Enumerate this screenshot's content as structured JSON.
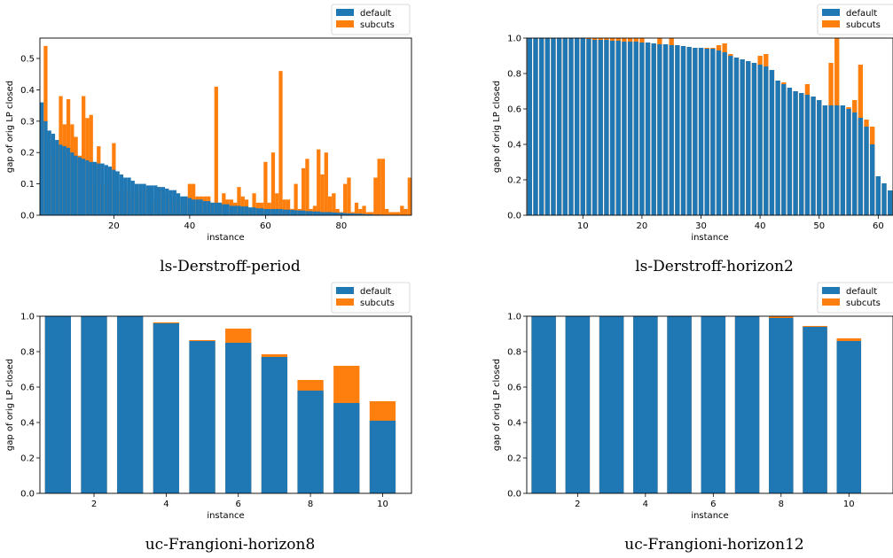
{
  "colors": {
    "default": "#1f77b4",
    "subcuts": "#ff7f0e"
  },
  "chart_data": [
    {
      "type": "bar",
      "caption": "ls-Derstroff-period",
      "xlabel": "instance",
      "ylabel": "gap of orig LP closed",
      "xlim": [
        0.5,
        98.5
      ],
      "ylim": [
        0,
        0.565
      ],
      "xticks": [
        20,
        40,
        60,
        80
      ],
      "yticks": [
        0.0,
        0.1,
        0.2,
        0.3,
        0.4,
        0.5
      ],
      "ytick_decimals": 1,
      "bar_width": 1.0,
      "legend": "top-right",
      "x": [
        1,
        2,
        3,
        4,
        5,
        6,
        7,
        8,
        9,
        10,
        11,
        12,
        13,
        14,
        15,
        16,
        17,
        18,
        19,
        20,
        21,
        22,
        23,
        24,
        25,
        26,
        27,
        28,
        29,
        30,
        31,
        32,
        33,
        34,
        35,
        36,
        37,
        38,
        39,
        40,
        41,
        42,
        43,
        44,
        45,
        46,
        47,
        48,
        49,
        50,
        51,
        52,
        53,
        54,
        55,
        56,
        57,
        58,
        59,
        60,
        61,
        62,
        63,
        64,
        65,
        66,
        67,
        68,
        69,
        70,
        71,
        72,
        73,
        74,
        75,
        76,
        77,
        78,
        79,
        80,
        81,
        82,
        83,
        84,
        85,
        86,
        87,
        88,
        89,
        90,
        91,
        92,
        93,
        94,
        95,
        96,
        97,
        98
      ],
      "series": [
        {
          "name": "default",
          "values": [
            0.36,
            0.3,
            0.27,
            0.26,
            0.24,
            0.225,
            0.22,
            0.215,
            0.2,
            0.19,
            0.185,
            0.18,
            0.175,
            0.17,
            0.17,
            0.165,
            0.165,
            0.16,
            0.155,
            0.145,
            0.14,
            0.13,
            0.12,
            0.12,
            0.11,
            0.1,
            0.1,
            0.1,
            0.095,
            0.095,
            0.095,
            0.09,
            0.09,
            0.085,
            0.08,
            0.08,
            0.07,
            0.06,
            0.06,
            0.055,
            0.05,
            0.05,
            0.05,
            0.045,
            0.045,
            0.04,
            0.04,
            0.04,
            0.035,
            0.035,
            0.03,
            0.03,
            0.03,
            0.028,
            0.028,
            0.025,
            0.025,
            0.022,
            0.022,
            0.02,
            0.02,
            0.02,
            0.02,
            0.02,
            0.018,
            0.018,
            0.017,
            0.016,
            0.015,
            0.015,
            0.013,
            0.013,
            0.012,
            0.012,
            0.01,
            0.01,
            0.01,
            0.009,
            0.008,
            0.008,
            0.007,
            0.006,
            0.006,
            0.005,
            0.005,
            0.004,
            0.003,
            0.003,
            0.002,
            0.002,
            0.001,
            0.001,
            0.001,
            0.0,
            0.0,
            0.0,
            0.0,
            0.0
          ]
        },
        {
          "name": "subcuts",
          "values": [
            0.3,
            0.54,
            0.24,
            0.19,
            0.23,
            0.38,
            0.29,
            0.37,
            0.29,
            0.25,
            0.19,
            0.38,
            0.31,
            0.32,
            0.1,
            0.22,
            0.1,
            0.1,
            0.1,
            0.23,
            0.08,
            0.08,
            0.08,
            0.08,
            0.08,
            0.06,
            0.08,
            0.08,
            0.08,
            0.05,
            0.04,
            0.09,
            0.07,
            0.07,
            0.05,
            0.05,
            0.05,
            0.04,
            0.04,
            0.1,
            0.1,
            0.06,
            0.06,
            0.06,
            0.06,
            0.04,
            0.41,
            0.04,
            0.07,
            0.05,
            0.05,
            0.04,
            0.09,
            0.06,
            0.05,
            0.02,
            0.07,
            0.04,
            0.04,
            0.17,
            0.04,
            0.2,
            0.07,
            0.46,
            0.05,
            0.05,
            0.02,
            0.1,
            0.02,
            0.15,
            0.18,
            0.02,
            0.03,
            0.21,
            0.13,
            0.2,
            0.06,
            0.07,
            0.02,
            0.01,
            0.1,
            0.12,
            0.01,
            0.04,
            0.02,
            0.03,
            0.01,
            0.01,
            0.12,
            0.18,
            0.18,
            0.02,
            0.01,
            0.01,
            0.01,
            0.03,
            0.02,
            0.12
          ]
        }
      ]
    },
    {
      "type": "bar",
      "caption": "ls-Derstroff-horizon2",
      "xlabel": "instance",
      "ylabel": "gap of orig LP closed",
      "xlim": [
        0.5,
        62.5
      ],
      "ylim": [
        0,
        1.0
      ],
      "xticks": [
        10,
        20,
        30,
        40,
        50,
        60
      ],
      "yticks": [
        0.0,
        0.2,
        0.4,
        0.6,
        0.8,
        1.0
      ],
      "ytick_decimals": 1,
      "bar_width": 0.8,
      "legend": "top-right",
      "x": [
        1,
        2,
        3,
        4,
        5,
        6,
        7,
        8,
        9,
        10,
        11,
        12,
        13,
        14,
        15,
        16,
        17,
        18,
        19,
        20,
        21,
        22,
        23,
        24,
        25,
        26,
        27,
        28,
        29,
        30,
        31,
        32,
        33,
        34,
        35,
        36,
        37,
        38,
        39,
        40,
        41,
        42,
        43,
        44,
        45,
        46,
        47,
        48,
        49,
        50,
        51,
        52,
        53,
        54,
        55,
        56,
        57,
        58,
        59,
        60,
        61,
        62
      ],
      "series": [
        {
          "name": "default",
          "values": [
            1.0,
            1.0,
            1.0,
            1.0,
            1.0,
            1.0,
            1.0,
            1.0,
            1.0,
            1.0,
            0.995,
            0.99,
            0.99,
            0.99,
            0.985,
            0.985,
            0.98,
            0.98,
            0.98,
            0.975,
            0.975,
            0.97,
            0.965,
            0.965,
            0.96,
            0.96,
            0.955,
            0.95,
            0.945,
            0.945,
            0.94,
            0.94,
            0.93,
            0.92,
            0.9,
            0.89,
            0.88,
            0.87,
            0.86,
            0.85,
            0.84,
            0.82,
            0.76,
            0.74,
            0.72,
            0.7,
            0.69,
            0.68,
            0.67,
            0.65,
            0.62,
            0.62,
            0.62,
            0.62,
            0.6,
            0.58,
            0.55,
            0.5,
            0.4,
            0.22,
            0.18,
            0.14
          ]
        },
        {
          "name": "subcuts",
          "values": [
            1.0,
            1.0,
            1.0,
            1.0,
            1.0,
            1.0,
            1.0,
            1.0,
            1.0,
            1.0,
            1.0,
            1.0,
            1.0,
            1.0,
            1.0,
            1.0,
            1.0,
            1.0,
            1.0,
            1.0,
            0.975,
            0.97,
            1.0,
            0.965,
            1.0,
            0.96,
            0.955,
            0.95,
            0.945,
            0.945,
            0.945,
            0.945,
            0.96,
            0.97,
            0.91,
            0.89,
            0.88,
            0.87,
            0.86,
            0.9,
            0.91,
            0.82,
            0.76,
            0.75,
            0.7,
            0.7,
            0.69,
            0.74,
            0.67,
            0.65,
            0.62,
            0.86,
            1.0,
            0.62,
            0.61,
            0.65,
            0.85,
            0.54,
            0.5,
            0.22,
            0.18,
            0.14
          ]
        }
      ]
    },
    {
      "type": "bar",
      "caption": "uc-Frangioni-horizon8",
      "xlabel": "instance",
      "ylabel": "gap of orig LP closed",
      "xlim": [
        0.5,
        10.8
      ],
      "ylim": [
        0,
        1.0
      ],
      "xticks": [
        2,
        4,
        6,
        8,
        10
      ],
      "yticks": [
        0.0,
        0.2,
        0.4,
        0.6,
        0.8,
        1.0
      ],
      "ytick_decimals": 1,
      "bar_width": 0.72,
      "legend": "top-right",
      "x": [
        1,
        2,
        3,
        4,
        5,
        6,
        7,
        8,
        9,
        10
      ],
      "series": [
        {
          "name": "default",
          "values": [
            1.0,
            1.0,
            1.0,
            0.96,
            0.86,
            0.85,
            0.77,
            0.58,
            0.51,
            0.41
          ]
        },
        {
          "name": "subcuts",
          "values": [
            1.0,
            1.0,
            1.0,
            0.965,
            0.865,
            0.93,
            0.785,
            0.64,
            0.72,
            0.52
          ]
        }
      ]
    },
    {
      "type": "bar",
      "caption": "uc-Frangioni-horizon12",
      "xlabel": "instance",
      "ylabel": "gap of orig LP closed",
      "xlim": [
        0.5,
        11.3
      ],
      "ylim": [
        0,
        1.0
      ],
      "xticks": [
        2,
        4,
        6,
        8,
        10
      ],
      "yticks": [
        0.0,
        0.2,
        0.4,
        0.6,
        0.8,
        1.0
      ],
      "ytick_decimals": 1,
      "bar_width": 0.72,
      "legend": "top-right",
      "x": [
        1,
        2,
        3,
        4,
        5,
        6,
        7,
        8,
        9,
        10
      ],
      "series": [
        {
          "name": "default",
          "values": [
            1.0,
            1.0,
            1.0,
            1.0,
            1.0,
            1.0,
            1.0,
            0.99,
            0.94,
            0.86
          ]
        },
        {
          "name": "subcuts",
          "values": [
            1.0,
            1.0,
            1.0,
            1.0,
            1.0,
            1.0,
            1.0,
            1.0,
            0.945,
            0.875
          ]
        }
      ]
    }
  ]
}
